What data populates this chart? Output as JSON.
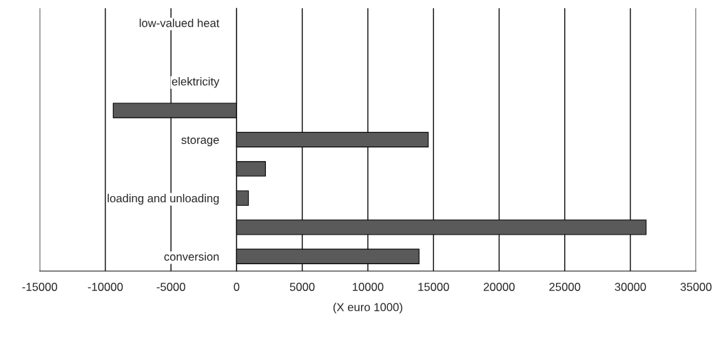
{
  "chart_data": {
    "type": "bar",
    "orientation": "horizontal",
    "xlabel": "(X euro 1000)",
    "categories": [
      "low-valued heat",
      null,
      "elektricity",
      null,
      "storage",
      null,
      "loading and unloading",
      null,
      "conversion"
    ],
    "values": [
      null,
      null,
      null,
      -9400,
      14600,
      2200,
      900,
      31200,
      13900
    ],
    "color": "#5a5a5a",
    "xlim": [
      -15000,
      35000
    ],
    "xticks": [
      -15000,
      -10000,
      -5000,
      0,
      5000,
      10000,
      15000,
      20000,
      25000,
      30000,
      35000
    ],
    "grid": "x",
    "legend": false
  }
}
